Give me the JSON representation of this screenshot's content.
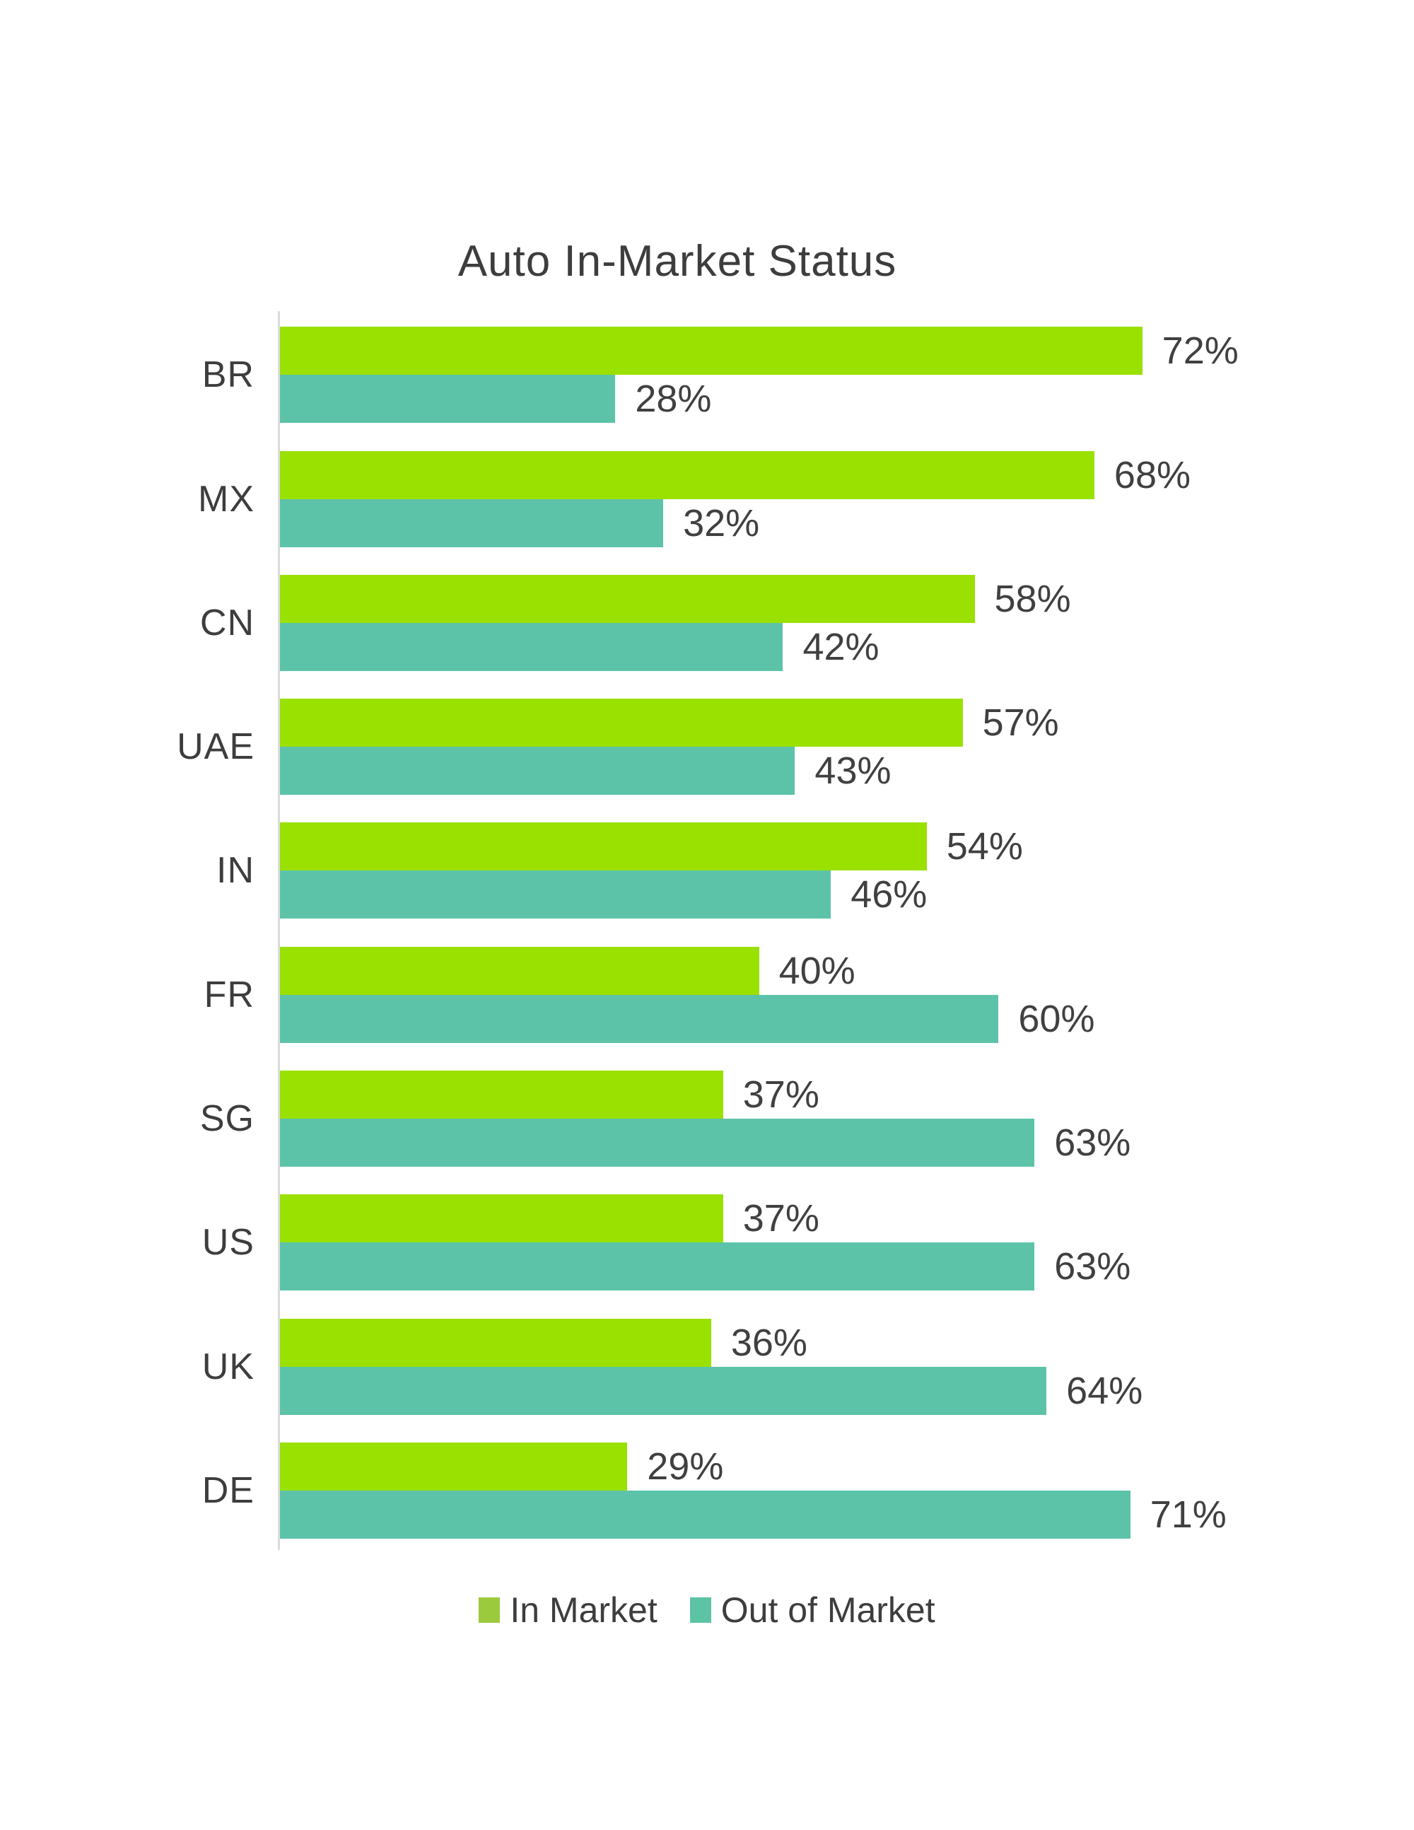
{
  "title": "Auto In-Market Status",
  "chart_data": {
    "type": "bar",
    "orientation": "horizontal",
    "title": "Auto In-Market Status",
    "categories": [
      "BR",
      "MX",
      "CN",
      "UAE",
      "IN",
      "FR",
      "SG",
      "US",
      "UK",
      "DE"
    ],
    "series": [
      {
        "name": "In Market",
        "color": "#9ae000",
        "legend_color": "#9bca3c",
        "values": [
          72,
          68,
          58,
          57,
          54,
          40,
          37,
          37,
          36,
          29
        ],
        "labels": [
          "72%",
          "68%",
          "58%",
          "57%",
          "54%",
          "40%",
          "37%",
          "37%",
          "36%",
          "29%"
        ]
      },
      {
        "name": "Out of Market",
        "color": "#5cc3a9",
        "legend_color": "#5cc3a4",
        "values": [
          28,
          32,
          42,
          43,
          46,
          60,
          63,
          63,
          64,
          71
        ],
        "labels": [
          "28%",
          "32%",
          "42%",
          "43%",
          "46%",
          "60%",
          "63%",
          "63%",
          "64%",
          "71%"
        ]
      }
    ],
    "value_suffix": "%",
    "xlim": [
      0,
      100
    ],
    "grid": false,
    "legend_position": "bottom",
    "axis_color": "#dbdbdb",
    "text_color": "#3d3d3d"
  }
}
